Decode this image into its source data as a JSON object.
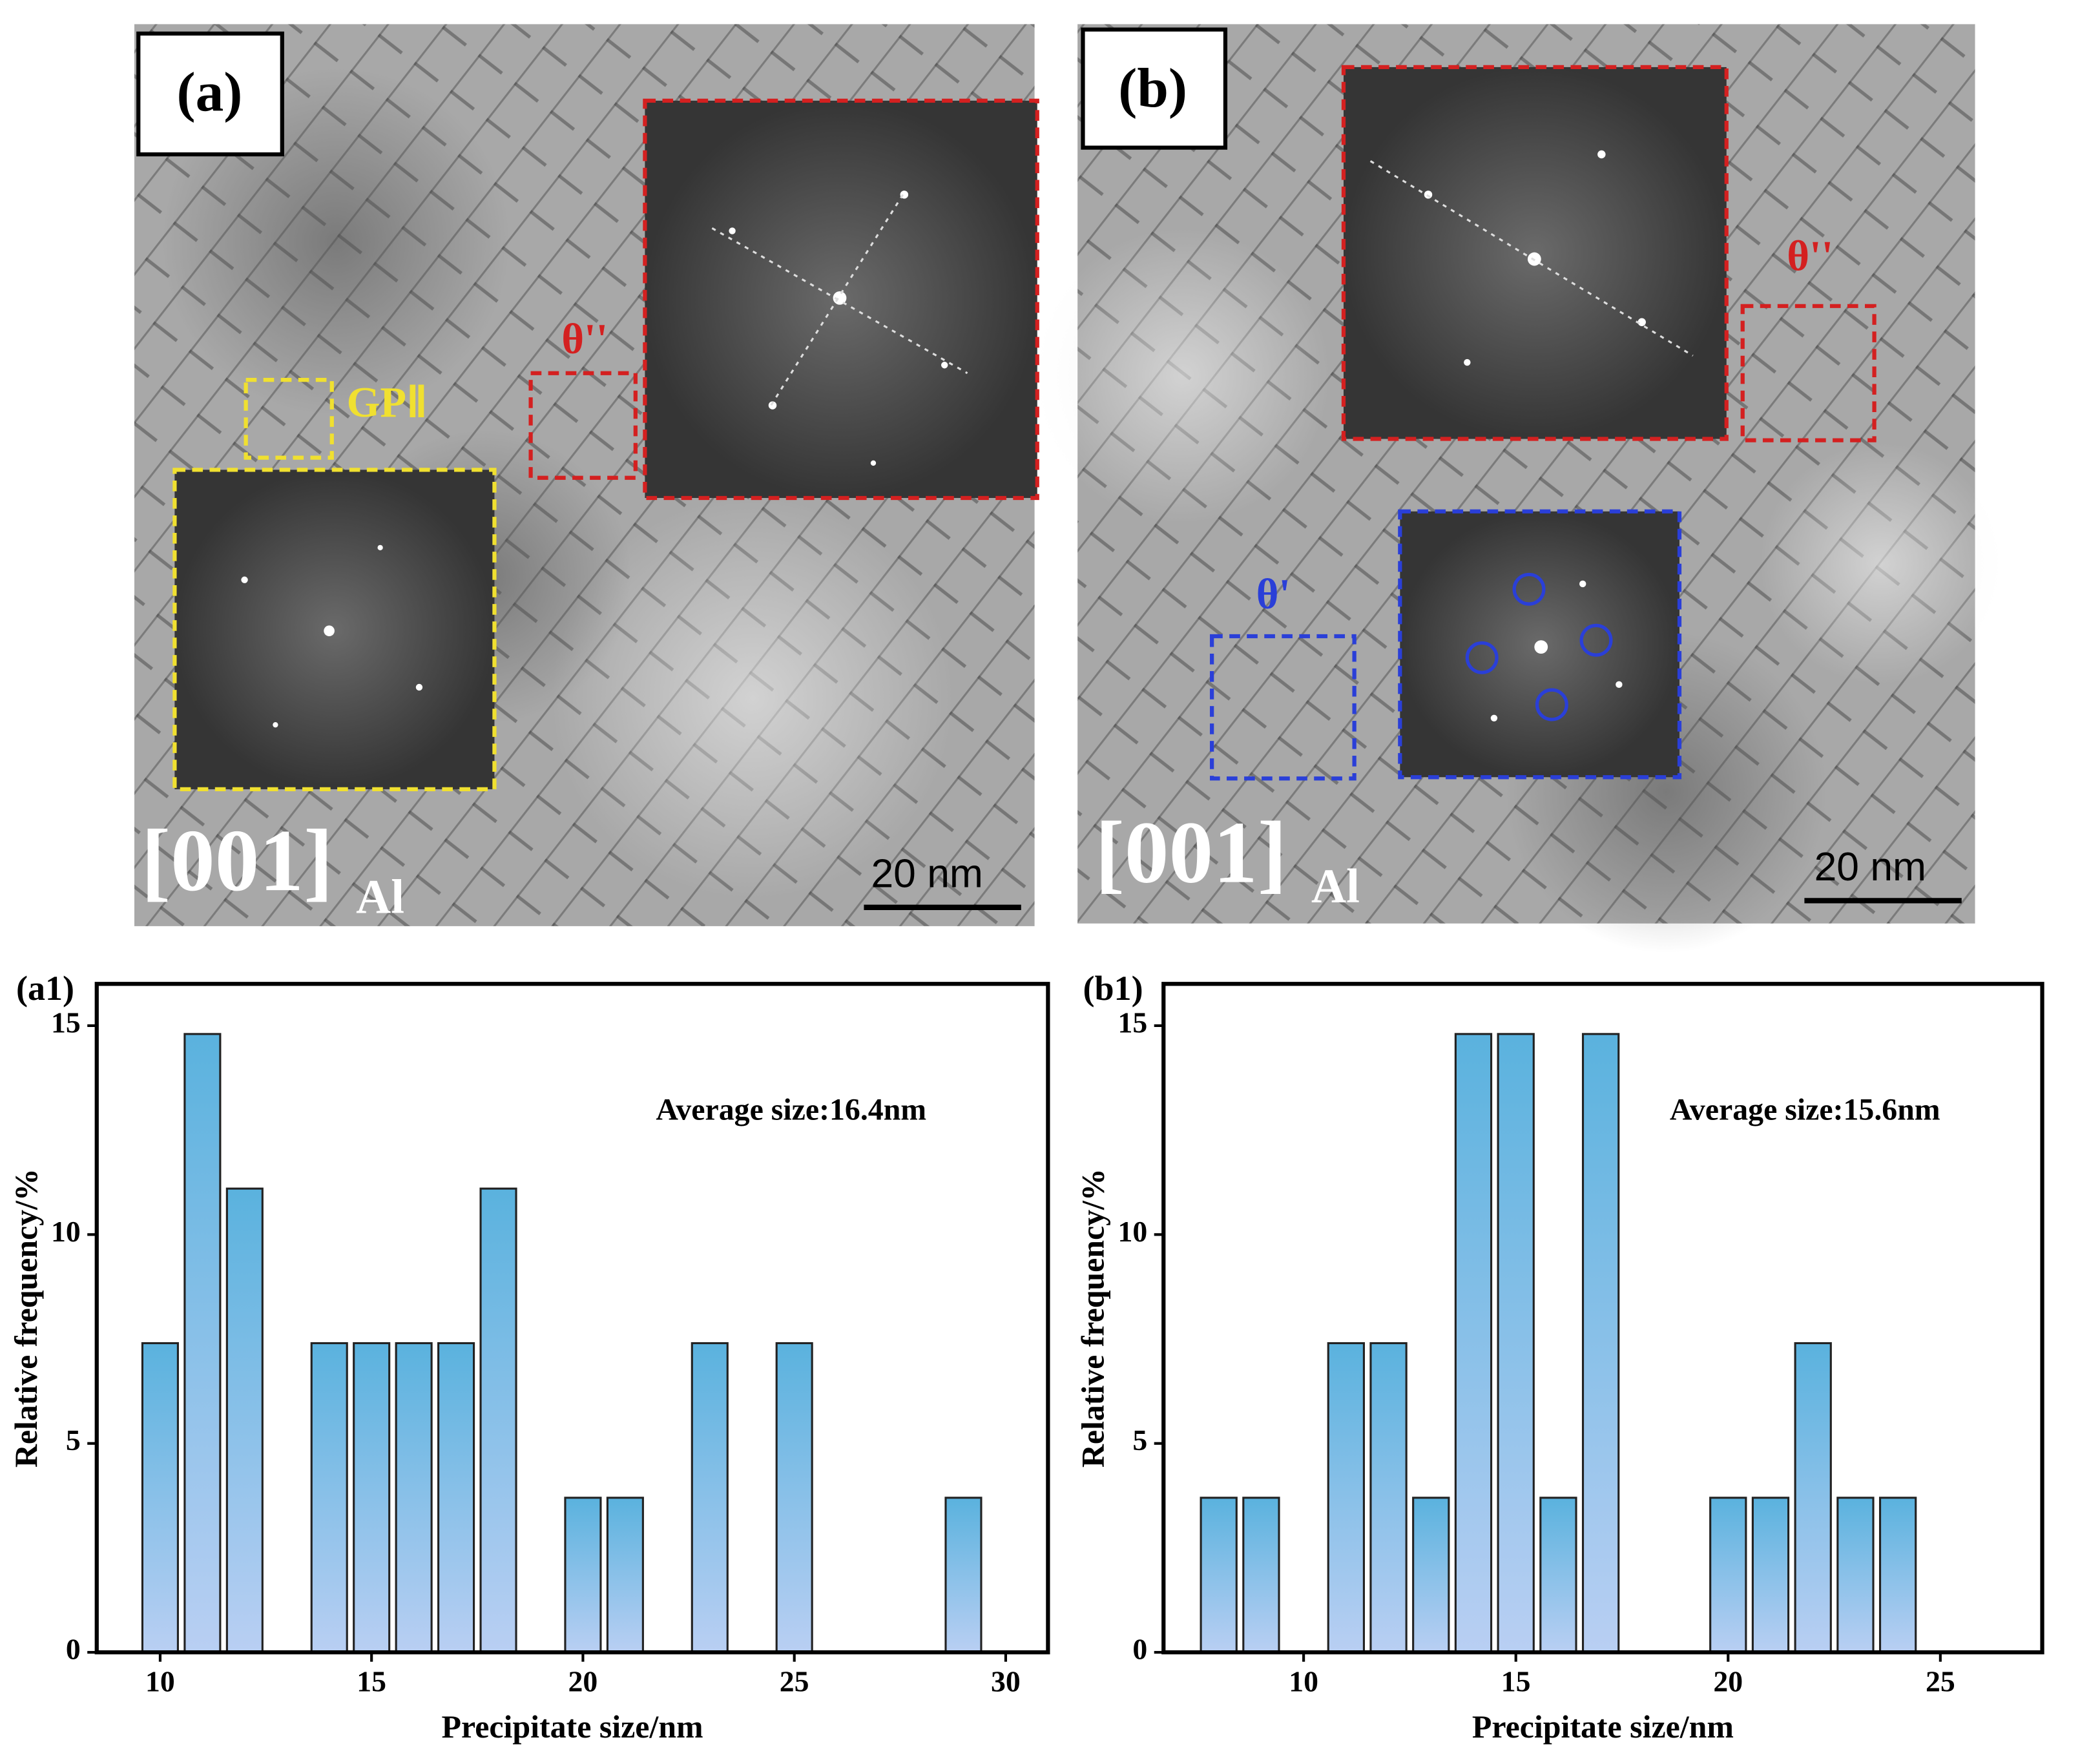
{
  "images": [
    {
      "label": "(a)",
      "zone": "[001]",
      "zone_sub": "Al",
      "scale_bar": "20 nm",
      "annotations": [
        "GPⅡ",
        "θ''"
      ]
    },
    {
      "label": "(b)",
      "zone": "[001]",
      "zone_sub": "Al",
      "scale_bar": "20 nm",
      "annotations": [
        "θ''",
        "θ'"
      ]
    }
  ],
  "chart_data": [
    {
      "type": "bar",
      "panel": "(a1)",
      "annotation": "Average size:16.4nm",
      "x_label": "Precipitate size/nm",
      "y_label": "Relative frequency/%",
      "x": [
        10,
        11,
        12,
        14,
        15,
        16,
        17,
        18,
        20,
        21,
        23,
        25,
        29
      ],
      "values": [
        7.4,
        14.8,
        11.1,
        7.4,
        7.4,
        7.4,
        7.4,
        11.1,
        3.7,
        3.7,
        7.4,
        7.4,
        3.7
      ],
      "color": "#5ab2de",
      "gradient_bottom": "#b9cff3",
      "xlim": [
        8.5,
        31
      ],
      "xticks": [
        10,
        15,
        20,
        25,
        30
      ],
      "ylim": [
        0,
        16
      ],
      "yticks": [
        0,
        5,
        10,
        15
      ]
    },
    {
      "type": "bar",
      "panel": "(b1)",
      "annotation": "Average size:15.6nm",
      "x_label": "Precipitate size/nm",
      "y_label": "Relative frequency/%",
      "x": [
        8,
        9,
        11,
        12,
        13,
        14,
        15,
        16,
        17,
        20,
        21,
        22,
        23,
        24
      ],
      "values": [
        3.7,
        3.7,
        7.4,
        7.4,
        3.7,
        14.8,
        14.8,
        3.7,
        14.8,
        3.7,
        3.7,
        7.4,
        3.7,
        3.7
      ],
      "color": "#5ab2de",
      "gradient_bottom": "#b9cff3",
      "xlim": [
        6.7,
        27.4
      ],
      "xticks": [
        10,
        15,
        20,
        25
      ],
      "ylim": [
        0,
        16
      ],
      "yticks": [
        0,
        5,
        10,
        15
      ]
    }
  ]
}
